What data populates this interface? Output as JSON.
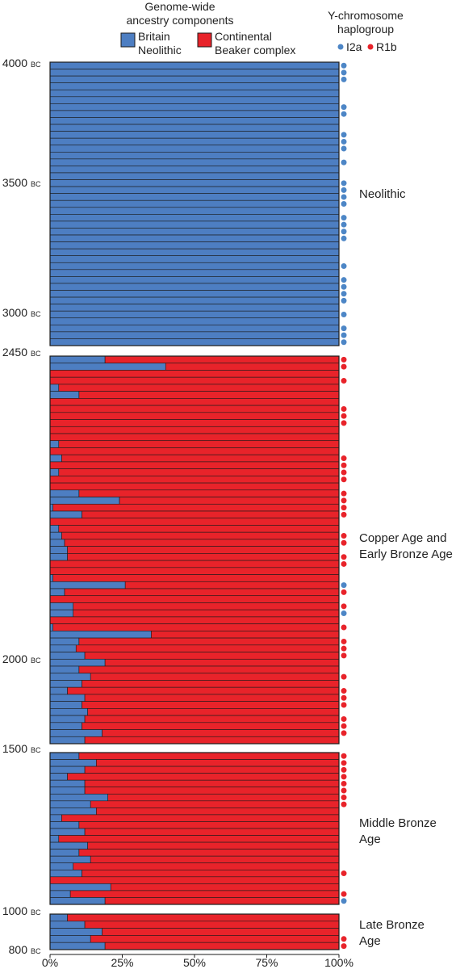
{
  "legend": {
    "ancestry_title": "Genome-wide ancestry components",
    "ancestry_title_line1": "Genome-wide",
    "ancestry_title_line2": "ancestry components",
    "comp1_line1": "Britain",
    "comp1_line2": "Neolithic",
    "comp2_line1": "Continental",
    "comp2_line2": "Beaker complex",
    "ychr_title": "Y-chromosome haplogroup",
    "ychr_line1": "Y-chromosome",
    "ychr_line2": "haplogroup",
    "hap1": "I2a",
    "hap2": "R1b"
  },
  "colors": {
    "britain_neolithic": "#4d7ec2",
    "beaker_complex": "#e8232a",
    "i2a": "#4d86c6",
    "r1b": "#e8232a",
    "outline": "#1a1a1a"
  },
  "time_labels": [
    {
      "year": "4000",
      "era": "BC"
    },
    {
      "year": "3500",
      "era": "BC"
    },
    {
      "year": "3000",
      "era": "BC"
    },
    {
      "year": "2450",
      "era": "BC"
    },
    {
      "year": "2000",
      "era": "BC"
    },
    {
      "year": "1500",
      "era": "BC"
    },
    {
      "year": "1000",
      "era": "BC"
    },
    {
      "year": "800",
      "era": "BC"
    }
  ],
  "panel_labels": [
    {
      "line1": "Neolithic",
      "line2": ""
    },
    {
      "line1": "Copper Age and",
      "line2": "Early Bronze Age"
    },
    {
      "line1": "Middle Bronze",
      "line2": "Age"
    },
    {
      "line1": "Late Bronze",
      "line2": "Age"
    }
  ],
  "chart_data": {
    "type": "bar",
    "orientation": "horizontal",
    "stacked": true,
    "xlabel": "",
    "xlim": [
      0,
      100
    ],
    "xticks": [
      "0%",
      "25%",
      "50%",
      "75%",
      "100%"
    ],
    "series_names": [
      "Britain Neolithic",
      "Continental Beaker complex"
    ],
    "haplogroups": [
      "I2a",
      "R1b"
    ],
    "panels": [
      {
        "label": "Neolithic",
        "start_label": "4000 BC",
        "end_label": "3000 BC",
        "britain_neolithic_pct": [
          100,
          100,
          100,
          100,
          100,
          100,
          100,
          100,
          100,
          100,
          100,
          100,
          100,
          100,
          100,
          100,
          100,
          100,
          100,
          100,
          100,
          100,
          100,
          100,
          100,
          100,
          100,
          100,
          100,
          100,
          100,
          100,
          100,
          100,
          100,
          100,
          100,
          100,
          100,
          100,
          100
        ],
        "y_haplogroup": [
          "I2a",
          "I2a",
          "I2a",
          "",
          "",
          "",
          "I2a",
          "I2a",
          "",
          "",
          "I2a",
          "I2a",
          "I2a",
          "",
          "I2a",
          "",
          "",
          "I2a",
          "I2a",
          "I2a",
          "I2a",
          "",
          "I2a",
          "I2a",
          "I2a",
          "I2a",
          "",
          "",
          "",
          "I2a",
          "",
          "I2a",
          "I2a",
          "I2a",
          "I2a",
          "",
          "I2a",
          "",
          "I2a",
          "I2a",
          "I2a"
        ]
      },
      {
        "label": "Copper Age and Early Bronze Age",
        "start_label": "2450 BC",
        "end_label": "2000 BC",
        "britain_neolithic_pct": [
          19,
          40,
          0,
          0,
          3,
          10,
          0,
          0,
          0,
          0,
          0,
          0,
          3,
          0,
          4,
          0,
          3,
          0,
          0,
          10,
          24,
          1,
          11,
          0,
          3,
          4,
          5,
          6,
          6,
          0,
          0,
          1,
          26,
          5,
          0,
          8,
          8,
          0,
          1,
          35,
          10,
          9,
          12,
          19,
          10,
          14,
          11,
          6,
          12,
          11,
          13,
          12,
          11,
          18,
          12
        ],
        "y_haplogroup": [
          "R1b",
          "R1b",
          "",
          "R1b",
          "",
          "",
          "",
          "R1b",
          "R1b",
          "R1b",
          "",
          "",
          "",
          "",
          "R1b",
          "R1b",
          "R1b",
          "R1b",
          "",
          "R1b",
          "R1b",
          "R1b",
          "R1b",
          "",
          "",
          "R1b",
          "R1b",
          "",
          "R1b",
          "R1b",
          "",
          "",
          "I2a",
          "R1b",
          "",
          "R1b",
          "I2a",
          "",
          "R1b",
          "",
          "R1b",
          "R1b",
          "R1b",
          "",
          "",
          "R1b",
          "",
          "R1b",
          "R1b",
          "R1b",
          "",
          "R1b",
          "R1b",
          "R1b",
          ""
        ]
      },
      {
        "label": "Middle Bronze Age",
        "start_label": "1500 BC",
        "end_label": "1000 BC",
        "britain_neolithic_pct": [
          10,
          16,
          12,
          6,
          12,
          12,
          20,
          14,
          16,
          4,
          10,
          12,
          3,
          13,
          10,
          14,
          8,
          11,
          0,
          21,
          7,
          19
        ],
        "y_haplogroup": [
          "R1b",
          "R1b",
          "R1b",
          "R1b",
          "R1b",
          "R1b",
          "R1b",
          "R1b",
          "",
          "",
          "",
          "",
          "",
          "",
          "",
          "",
          "",
          "R1b",
          "",
          "",
          "R1b",
          "I2a"
        ]
      },
      {
        "label": "Late Bronze Age",
        "start_label": "1000 BC",
        "end_label": "800 BC",
        "britain_neolithic_pct": [
          6,
          12,
          18,
          14,
          19
        ],
        "y_haplogroup": [
          "",
          "",
          "",
          "R1b",
          "R1b"
        ]
      }
    ]
  }
}
